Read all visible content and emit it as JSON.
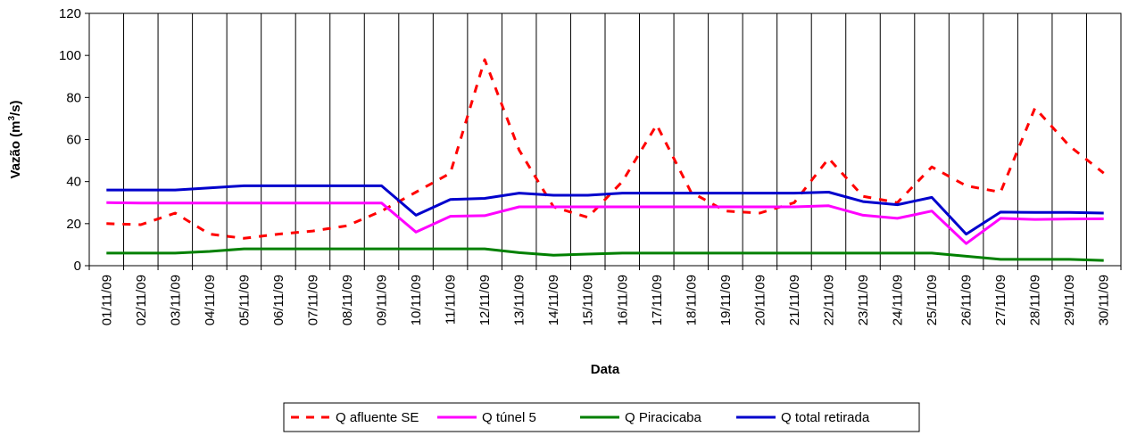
{
  "chart_data": {
    "type": "line",
    "title": "",
    "xlabel": "Data",
    "ylabel": "Vazão (m³/s)",
    "ylabel_parts": {
      "before": "Vazão (m",
      "sup": "3",
      "after": "/s)"
    },
    "ylim": [
      0,
      120
    ],
    "yticks": [
      0,
      20,
      40,
      60,
      80,
      100,
      120
    ],
    "grid": "vertical",
    "legend_position": "bottom",
    "categories": [
      "01/11/09",
      "02/11/09",
      "03/11/09",
      "04/11/09",
      "05/11/09",
      "06/11/09",
      "07/11/09",
      "08/11/09",
      "09/11/09",
      "10/11/09",
      "11/11/09",
      "12/11/09",
      "13/11/09",
      "14/11/09",
      "15/11/09",
      "16/11/09",
      "17/11/09",
      "18/11/09",
      "19/11/09",
      "20/11/09",
      "21/11/09",
      "22/11/09",
      "23/11/09",
      "24/11/09",
      "25/11/09",
      "26/11/09",
      "27/11/09",
      "28/11/09",
      "29/11/09",
      "30/11/09"
    ],
    "series": [
      {
        "name": "Q afluente SE",
        "color": "#ff0000",
        "style": "dashed",
        "values": [
          20,
          19.5,
          25,
          15,
          13,
          15,
          16.5,
          19,
          26,
          35,
          44,
          98,
          55,
          28,
          23,
          40,
          67,
          35,
          26,
          25,
          30,
          51,
          33,
          30,
          47,
          38,
          35,
          75,
          57,
          44
        ]
      },
      {
        "name": "Q túnel 5",
        "color": "#ff00ff",
        "style": "solid",
        "values": [
          30,
          29.8,
          29.8,
          29.8,
          29.8,
          29.8,
          29.8,
          29.8,
          29.8,
          16,
          23.5,
          23.8,
          28,
          28,
          28,
          28,
          28,
          28,
          28,
          28,
          28,
          28.5,
          24,
          22.5,
          26,
          10.5,
          22.5,
          22,
          22.2,
          22.3
        ]
      },
      {
        "name": "Q Piracicaba",
        "color": "#008000",
        "style": "solid",
        "values": [
          6,
          6,
          6,
          6.8,
          8,
          8,
          8,
          8,
          8,
          8,
          8,
          8,
          6.2,
          5,
          5.5,
          6,
          6,
          6,
          6,
          6,
          6,
          6,
          6,
          6,
          6,
          4.5,
          3,
          3,
          3,
          2.5
        ]
      },
      {
        "name": "Q total retirada",
        "color": "#0000cc",
        "style": "solid",
        "values": [
          36,
          36,
          36,
          37,
          38,
          38,
          38,
          38,
          38,
          24,
          31.5,
          32,
          34.5,
          33.5,
          33.5,
          34.5,
          34.5,
          34.5,
          34.5,
          34.5,
          34.5,
          35,
          30.5,
          29,
          32.5,
          15,
          25.5,
          25.3,
          25.3,
          25
        ]
      }
    ]
  }
}
